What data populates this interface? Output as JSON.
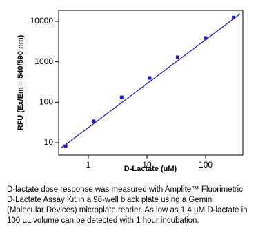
{
  "chart_data": {
    "type": "scatter",
    "x_label": "D-Lactate  (uM)",
    "y_label": "RFU (Ex/Em = 540/590 nm)",
    "x": [
      0.41,
      1.23,
      3.7,
      11.1,
      33.3,
      100,
      300
    ],
    "values": [
      8.2,
      34,
      133,
      400,
      1300,
      3900,
      12500
    ],
    "color": "#1a1acc",
    "fit_line": {
      "x": [
        0.34,
        387
      ],
      "y": [
        7.3,
        15350
      ]
    },
    "xlim": [
      0.312,
      431
    ],
    "ylim": [
      4.93,
      18750
    ],
    "xticks": [
      1,
      10,
      100
    ],
    "yticks": [
      10,
      100,
      1000,
      10000
    ],
    "x_log": true,
    "y_log": true
  },
  "caption": {
    "lines": [
      "D-lactate dose response was measured with Amplite™ Fluorimetric",
      "D-Lactate Assay Kit in a 96-well black plate using a Gemini",
      "(Molecular Devices) microplate reader.  As low as 1.4 µM D-lactate in",
      "100 µL volume can be detected with 1 hour incubation."
    ]
  }
}
